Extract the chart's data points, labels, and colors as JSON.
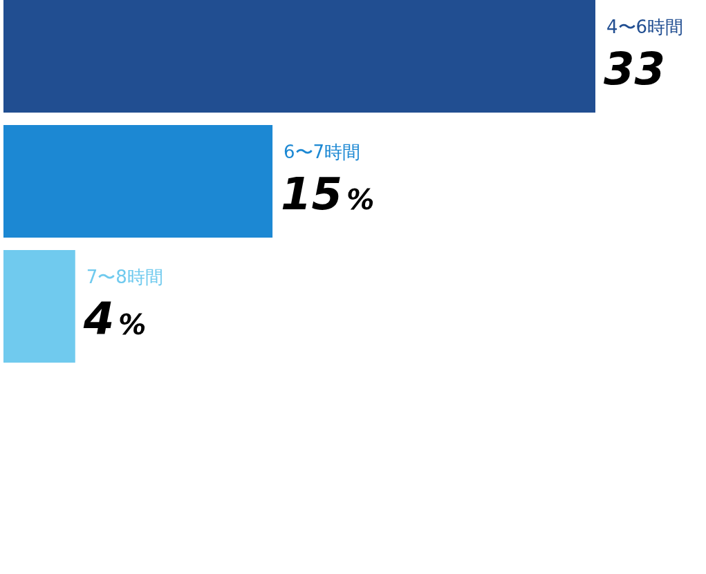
{
  "chart_data": {
    "type": "bar",
    "orientation": "horizontal",
    "categories": [
      "4〜6時間",
      "6〜7時間",
      "7〜8時間"
    ],
    "values": [
      33,
      15,
      4
    ],
    "value_labels": [
      "33",
      "15%",
      "4%"
    ],
    "colors": [
      "#214e91",
      "#1c88d3",
      "#70caee"
    ]
  }
}
